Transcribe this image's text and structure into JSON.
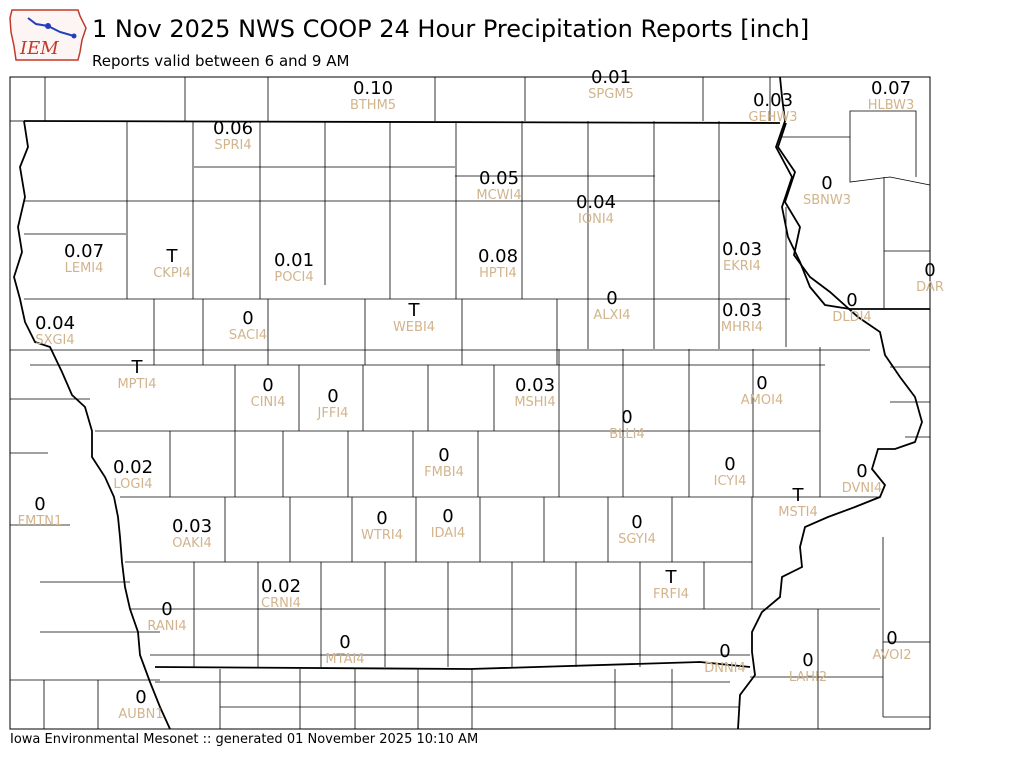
{
  "header": {
    "title": "1 Nov 2025 NWS COOP 24 Hour Precipitation Reports [inch]",
    "subtitle": "Reports valid between 6 and 9 AM"
  },
  "logo": {
    "text": "IEM",
    "icon": "iowa-state-outline-icon"
  },
  "footer": {
    "text": "Iowa Environmental Mesonet :: generated 01 November 2025 10:10 AM"
  },
  "colors": {
    "value_text": "#000000",
    "station_text": "#d2b48c",
    "county_line": "#000000",
    "background": "#ffffff",
    "logo_red": "#c0392b",
    "logo_blue": "#1f3fbf"
  },
  "stations": [
    {
      "id": "BTHM5",
      "value": "0.10"
    },
    {
      "id": "SPGM5",
      "value": "0.01"
    },
    {
      "id": "GEHW3",
      "value": "0.03"
    },
    {
      "id": "HLBW3",
      "value": "0.07"
    },
    {
      "id": "SPRI4",
      "value": "0.06"
    },
    {
      "id": "MCWI4",
      "value": "0.05"
    },
    {
      "id": "IONI4",
      "value": "0.04"
    },
    {
      "id": "SBNW3",
      "value": "0"
    },
    {
      "id": "LEMI4",
      "value": "0.07"
    },
    {
      "id": "CKPI4",
      "value": "T"
    },
    {
      "id": "POCI4",
      "value": "0.01"
    },
    {
      "id": "HPTI4",
      "value": "0.08"
    },
    {
      "id": "EKRI4",
      "value": "0.03"
    },
    {
      "id": "DAR",
      "value": "0"
    },
    {
      "id": "ALXI4",
      "value": "0"
    },
    {
      "id": "WEBI4",
      "value": "T"
    },
    {
      "id": "MHRI4",
      "value": "0.03"
    },
    {
      "id": "DLDI4",
      "value": "0"
    },
    {
      "id": "SXGI4",
      "value": "0.04"
    },
    {
      "id": "SACI4",
      "value": "0"
    },
    {
      "id": "MPTI4",
      "value": "T"
    },
    {
      "id": "CINI4",
      "value": "0"
    },
    {
      "id": "JFFI4",
      "value": "0"
    },
    {
      "id": "MSHI4",
      "value": "0.03"
    },
    {
      "id": "AMOI4",
      "value": "0"
    },
    {
      "id": "BLLI4",
      "value": "0"
    },
    {
      "id": "LOGI4",
      "value": "0.02"
    },
    {
      "id": "FMBI4",
      "value": "0"
    },
    {
      "id": "ICYI4",
      "value": "0"
    },
    {
      "id": "DVNI4",
      "value": "0"
    },
    {
      "id": "FMTN1",
      "value": "0"
    },
    {
      "id": "MSTI4",
      "value": "T"
    },
    {
      "id": "OAKI4",
      "value": "0.03"
    },
    {
      "id": "WTRI4",
      "value": "0"
    },
    {
      "id": "IDAI4",
      "value": "0"
    },
    {
      "id": "SGYI4",
      "value": "0"
    },
    {
      "id": "FRFI4",
      "value": "T"
    },
    {
      "id": "CRNI4",
      "value": "0.02"
    },
    {
      "id": "RANI4",
      "value": "0"
    },
    {
      "id": "AVOI2",
      "value": "0"
    },
    {
      "id": "MTAI4",
      "value": "0"
    },
    {
      "id": "DNNI4",
      "value": "0"
    },
    {
      "id": "LAHI2",
      "value": "0"
    },
    {
      "id": "AUBN1",
      "value": "0"
    }
  ]
}
